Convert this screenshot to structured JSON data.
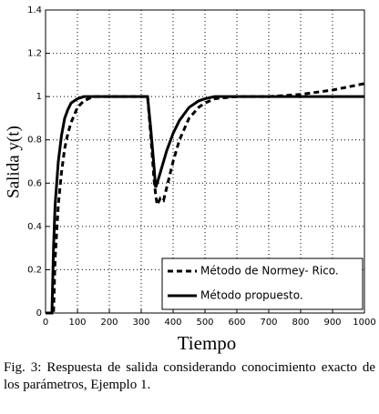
{
  "chart_data": {
    "type": "line",
    "xlabel": "Tiempo",
    "ylabel": "Salida y(t)",
    "x": [
      0,
      20,
      25,
      30,
      40,
      50,
      60,
      70,
      80,
      100,
      120,
      150,
      200,
      250,
      300,
      320,
      330,
      340,
      345,
      350,
      360,
      370,
      380,
      400,
      420,
      450,
      480,
      500,
      530,
      600,
      700,
      800,
      900,
      1000
    ],
    "series": [
      {
        "name": "Método de Normey- Rico.",
        "color": "#000000",
        "dash": true,
        "values": [
          0,
          0,
          0,
          0.25,
          0.5,
          0.65,
          0.76,
          0.83,
          0.88,
          0.95,
          0.98,
          1,
          1,
          1,
          1,
          1,
          0.82,
          0.62,
          0.55,
          0.5,
          0.53,
          0.52,
          0.58,
          0.7,
          0.8,
          0.9,
          0.95,
          0.97,
          0.99,
          1,
          1,
          1.01,
          1.03,
          1.06
        ]
      },
      {
        "name": "Método propuesto.",
        "color": "#000000",
        "dash": false,
        "values": [
          0,
          0,
          0.3,
          0.5,
          0.7,
          0.82,
          0.9,
          0.94,
          0.97,
          0.99,
          1,
          1,
          1,
          1,
          1,
          1,
          0.85,
          0.68,
          0.58,
          0.6,
          0.65,
          0.7,
          0.75,
          0.83,
          0.89,
          0.95,
          0.98,
          0.99,
          1,
          1,
          1,
          1,
          1,
          1
        ]
      }
    ],
    "xlim": [
      0,
      1000
    ],
    "xticks": [
      0,
      100,
      200,
      300,
      400,
      500,
      600,
      700,
      800,
      900,
      1000
    ],
    "ylim": [
      0,
      1.4
    ],
    "yticks": [
      0,
      0.2,
      0.4,
      0.6,
      0.8,
      1,
      1.2,
      1.4
    ],
    "grid": true,
    "legend": "lower right"
  },
  "caption": "Fig. 3: Respuesta de salida considerando conocimiento exacto de los parámetros, Ejemplo 1."
}
